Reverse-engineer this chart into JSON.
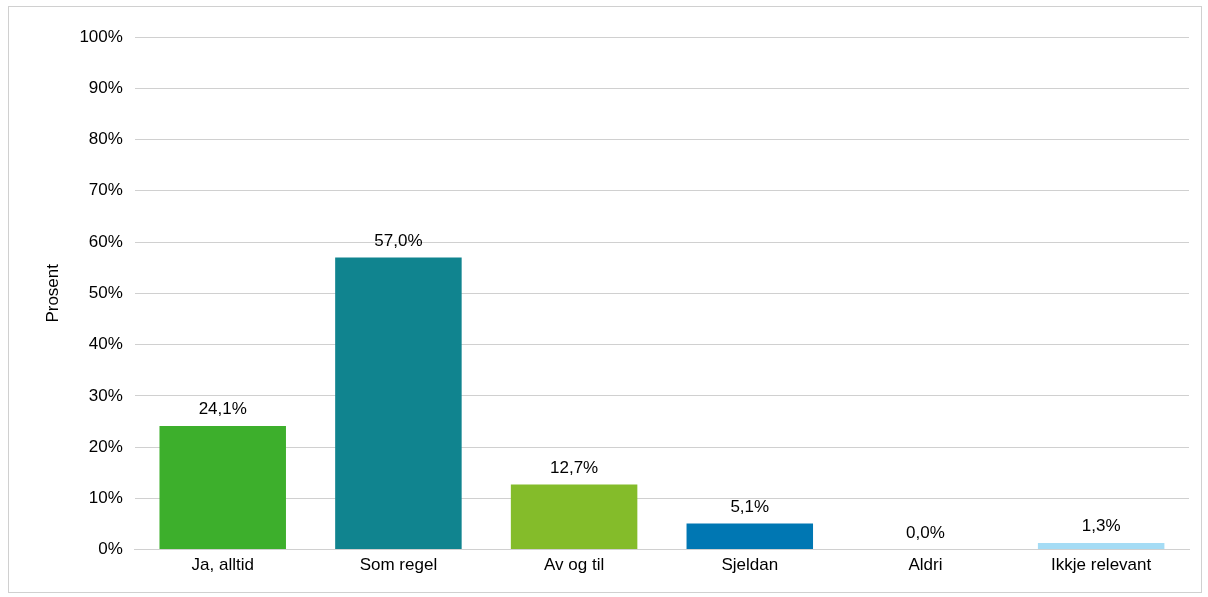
{
  "chart_data": {
    "type": "bar",
    "ylabel": "Prosent",
    "categories": [
      "Ja, alltid",
      "Som regel",
      "Av og til",
      "Sjeldan",
      "Aldri",
      "Ikkje relevant"
    ],
    "values": [
      24.1,
      57.0,
      12.7,
      5.1,
      0.0,
      1.3
    ],
    "colors": [
      "#3daf2c",
      "#10848f",
      "#84bc2a",
      "#0077b3",
      "#0077b3",
      "#a5dcf5"
    ],
    "value_labels": [
      "24,1%",
      "57,0%",
      "12,7%",
      "5,1%",
      "0,0%",
      "1,3%"
    ],
    "ylim": [
      0,
      100
    ],
    "yticks": [
      {
        "value": 0,
        "label": "0%"
      },
      {
        "value": 10,
        "label": "10%"
      },
      {
        "value": 20,
        "label": "20%"
      },
      {
        "value": 30,
        "label": "30%"
      },
      {
        "value": 40,
        "label": "40%"
      },
      {
        "value": 50,
        "label": "50%"
      },
      {
        "value": 60,
        "label": "60%"
      },
      {
        "value": 70,
        "label": "70%"
      },
      {
        "value": 80,
        "label": "80%"
      },
      {
        "value": 90,
        "label": "90%"
      },
      {
        "value": 100,
        "label": "100%"
      }
    ],
    "grid": "y",
    "legend": false
  }
}
